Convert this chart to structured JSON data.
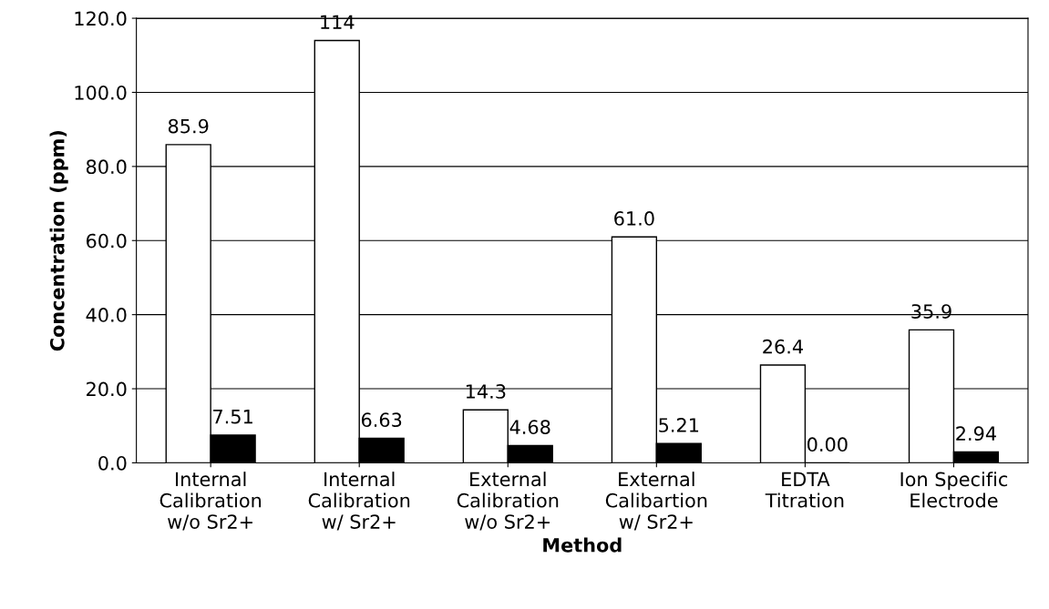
{
  "chart_data": {
    "type": "bar",
    "categories": [
      "Internal\nCalibration\nw/o Sr2+",
      "Internal\nCalibration\nw/ Sr2+",
      "External\nCalibration\nw/o Sr2+",
      "External\nCalibartion\nw/ Sr2+",
      "EDTA\nTitration",
      "Ion Specific\nElectrode"
    ],
    "series": [
      {
        "color": "#ffffff",
        "values": [
          85.9,
          114,
          14.3,
          61.0,
          26.4,
          35.9
        ],
        "value_labels": [
          "85.9",
          "114",
          "14.3",
          "61.0",
          "26.4",
          "35.9"
        ]
      },
      {
        "color": "#000000",
        "values": [
          7.51,
          6.63,
          4.68,
          5.21,
          0.0,
          2.94
        ],
        "value_labels": [
          "7.51",
          "6.63",
          "4.68",
          "5.21",
          "0.00",
          "2.94"
        ]
      }
    ],
    "xlabel": "Method",
    "ylabel": "Concentration (ppm)",
    "ylim": [
      0,
      120
    ],
    "yticks": [
      {
        "value": 0,
        "label": "0.0"
      },
      {
        "value": 20,
        "label": "20.0"
      },
      {
        "value": 40,
        "label": "40.0"
      },
      {
        "value": 60,
        "label": "60.0"
      },
      {
        "value": 80,
        "label": "80.0"
      },
      {
        "value": 100,
        "label": "100.0"
      },
      {
        "value": 120,
        "label": "120.0"
      }
    ],
    "grid": "y",
    "legend": false
  }
}
